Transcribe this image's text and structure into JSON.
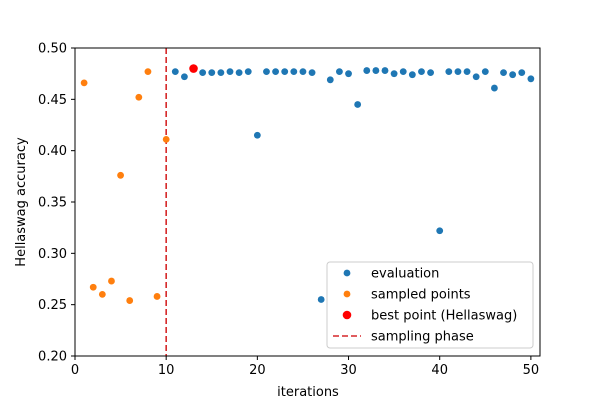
{
  "chart_data": {
    "type": "scatter",
    "xlabel": "iterations",
    "ylabel": "Hellaswag accuracy",
    "xlim": [
      0,
      51
    ],
    "ylim": [
      0.2,
      0.5
    ],
    "xticks": [
      0,
      10,
      20,
      30,
      40,
      50
    ],
    "yticks": [
      0.2,
      0.25,
      0.3,
      0.35,
      0.4,
      0.45,
      0.5
    ],
    "ytick_labels": [
      "0.20",
      "0.25",
      "0.30",
      "0.35",
      "0.40",
      "0.45",
      "0.50"
    ],
    "grid": false,
    "legend_position": "lower-right",
    "series": [
      {
        "name": "evaluation",
        "color": "#1f77b4",
        "points": [
          [
            11,
            0.477
          ],
          [
            12,
            0.472
          ],
          [
            14,
            0.476
          ],
          [
            15,
            0.476
          ],
          [
            16,
            0.476
          ],
          [
            17,
            0.477
          ],
          [
            18,
            0.476
          ],
          [
            19,
            0.477
          ],
          [
            20,
            0.415
          ],
          [
            21,
            0.477
          ],
          [
            22,
            0.477
          ],
          [
            23,
            0.477
          ],
          [
            24,
            0.477
          ],
          [
            25,
            0.477
          ],
          [
            26,
            0.476
          ],
          [
            27,
            0.255
          ],
          [
            28,
            0.469
          ],
          [
            29,
            0.477
          ],
          [
            30,
            0.475
          ],
          [
            31,
            0.445
          ],
          [
            32,
            0.478
          ],
          [
            33,
            0.478
          ],
          [
            34,
            0.478
          ],
          [
            35,
            0.475
          ],
          [
            36,
            0.477
          ],
          [
            37,
            0.474
          ],
          [
            38,
            0.477
          ],
          [
            39,
            0.476
          ],
          [
            40,
            0.322
          ],
          [
            41,
            0.477
          ],
          [
            42,
            0.477
          ],
          [
            43,
            0.477
          ],
          [
            44,
            0.472
          ],
          [
            45,
            0.477
          ],
          [
            46,
            0.461
          ],
          [
            47,
            0.476
          ],
          [
            48,
            0.474
          ],
          [
            49,
            0.476
          ],
          [
            50,
            0.47
          ]
        ]
      },
      {
        "name": "sampled points",
        "color": "#ff7f0e",
        "points": [
          [
            1,
            0.466
          ],
          [
            2,
            0.267
          ],
          [
            3,
            0.26
          ],
          [
            4,
            0.273
          ],
          [
            5,
            0.376
          ],
          [
            6,
            0.254
          ],
          [
            7,
            0.452
          ],
          [
            8,
            0.477
          ],
          [
            9,
            0.258
          ],
          [
            10,
            0.411
          ]
        ]
      },
      {
        "name": "best point (Hellaswag)",
        "color": "#ff0000",
        "points": [
          [
            13,
            0.48
          ]
        ]
      }
    ],
    "vline": {
      "name": "sampling phase",
      "x": 10,
      "color": "#d62728"
    }
  }
}
